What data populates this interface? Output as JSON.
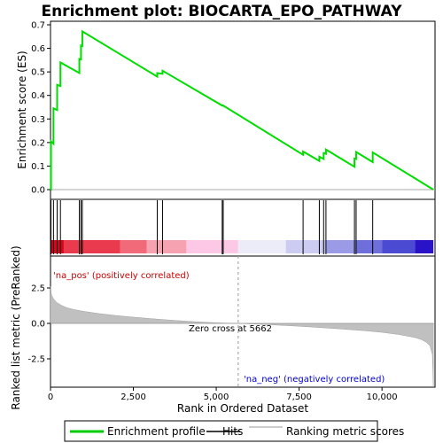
{
  "chart_data": {
    "type": "line",
    "title": "Enrichment plot: BIOCARTA_EPO_PATHWAY",
    "xlabel": "Rank in Ordered Dataset",
    "ylabel_top": "Enrichment score (ES)",
    "ylabel_bottom": "Ranked list metric (PreRanked)",
    "x_range": [
      0,
      11600
    ],
    "es_ylim": [
      -0.02,
      0.7
    ],
    "metric_ylim": [
      -4.6,
      4.2
    ],
    "x_ticks": [
      0,
      2500,
      5000,
      7500,
      10000
    ],
    "x_tick_labels": [
      "0",
      "2,500",
      "5,000",
      "7,500",
      "10,000"
    ],
    "es_ticks": [
      0.0,
      0.1,
      0.2,
      0.3,
      0.4,
      0.5,
      0.6,
      0.7
    ],
    "es_tick_labels": [
      "0.0",
      "0.1",
      "0.2",
      "0.3",
      "0.4",
      "0.5",
      "0.6",
      "0.7"
    ],
    "metric_ticks": [
      2.5,
      0.0,
      -2.5
    ],
    "metric_tick_labels": [
      "2.5",
      "0.0",
      "-2.5"
    ],
    "hits": [
      15,
      90,
      200,
      300,
      870,
      920,
      960,
      3220,
      3380,
      5180,
      5210,
      7620,
      8110,
      8240,
      8310,
      9170,
      9220,
      9720
    ],
    "enrichment_profile": {
      "x": [
        0,
        15,
        15,
        90,
        90,
        200,
        200,
        300,
        300,
        870,
        870,
        920,
        920,
        960,
        960,
        3220,
        3220,
        3380,
        3380,
        5180,
        5180,
        5210,
        5210,
        7620,
        7620,
        8110,
        8110,
        8240,
        8240,
        8310,
        8310,
        9170,
        9170,
        9220,
        9220,
        9720,
        9720,
        11550
      ],
      "y": [
        0.0,
        0.0,
        0.205,
        0.195,
        0.345,
        0.338,
        0.445,
        0.44,
        0.54,
        0.495,
        0.555,
        0.553,
        0.612,
        0.61,
        0.672,
        0.48,
        0.495,
        0.492,
        0.505,
        0.357,
        0.357,
        0.356,
        0.357,
        0.148,
        0.162,
        0.122,
        0.14,
        0.13,
        0.155,
        0.152,
        0.17,
        0.097,
        0.132,
        0.13,
        0.16,
        0.117,
        0.158,
        0.0
      ]
    },
    "ranked_metric": {
      "x": [
        0,
        30,
        100,
        200,
        350,
        500,
        700,
        1000,
        1500,
        2000,
        2500,
        3000,
        3500,
        4000,
        4500,
        5000,
        5662,
        6500,
        7500,
        8500,
        9500,
        10000,
        10500,
        11000,
        11200,
        11350,
        11450,
        11520,
        11550
      ],
      "y": [
        2.6,
        2.0,
        1.7,
        1.45,
        1.25,
        1.1,
        0.98,
        0.85,
        0.68,
        0.55,
        0.44,
        0.34,
        0.25,
        0.17,
        0.1,
        0.04,
        0.0,
        -0.08,
        -0.2,
        -0.35,
        -0.52,
        -0.63,
        -0.78,
        -1.0,
        -1.15,
        -1.35,
        -1.6,
        -2.2,
        -4.5
      ]
    },
    "color_bar": {
      "bands": [
        {
          "x0": 0,
          "x1": 400,
          "color": "#e0001e"
        },
        {
          "x0": 400,
          "x1": 2100,
          "color": "#ea3a4e"
        },
        {
          "x0": 2100,
          "x1": 2900,
          "color": "#f06a7a"
        },
        {
          "x0": 2900,
          "x1": 4100,
          "color": "#f7a2b0"
        },
        {
          "x0": 4100,
          "x1": 5662,
          "color": "#fcc8e6"
        },
        {
          "x0": 5662,
          "x1": 7100,
          "color": "#ececf9"
        },
        {
          "x0": 7100,
          "x1": 8300,
          "color": "#ccccf2"
        },
        {
          "x0": 8300,
          "x1": 9200,
          "color": "#9a9ae6"
        },
        {
          "x0": 9200,
          "x1": 10000,
          "color": "#6f6fdb"
        },
        {
          "x0": 10000,
          "x1": 11000,
          "color": "#4a4ad3"
        },
        {
          "x0": 11000,
          "x1": 11550,
          "color": "#2a12c8"
        }
      ]
    },
    "annotations": {
      "pos_label": "'na_pos' (positively correlated)",
      "neg_label": "'na_neg' (negatively correlated)",
      "zero_cross": "Zero cross at 5662",
      "zero_cross_x": 5662
    },
    "legend": {
      "position": "bottom",
      "items": [
        {
          "label": "Enrichment profile",
          "color": "#00cc00"
        },
        {
          "label": "Hits",
          "color": "#000000"
        },
        {
          "label": "Ranking metric scores",
          "color": "#bbbbbb"
        }
      ]
    },
    "colors": {
      "profile": "#00dd00",
      "hit": "#000000",
      "metric_fill": "#c0c0c0",
      "pos_text": "#cc0000",
      "neg_text": "#0000cc",
      "zero_line": "#999999"
    }
  }
}
